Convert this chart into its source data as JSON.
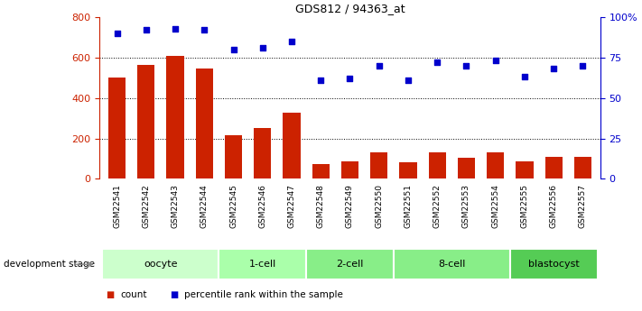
{
  "title": "GDS812 / 94363_at",
  "samples": [
    "GSM22541",
    "GSM22542",
    "GSM22543",
    "GSM22544",
    "GSM22545",
    "GSM22546",
    "GSM22547",
    "GSM22548",
    "GSM22549",
    "GSM22550",
    "GSM22551",
    "GSM22552",
    "GSM22553",
    "GSM22554",
    "GSM22555",
    "GSM22556",
    "GSM22557"
  ],
  "counts": [
    500,
    565,
    610,
    545,
    215,
    250,
    325,
    75,
    85,
    130,
    80,
    130,
    105,
    130,
    85,
    110,
    110
  ],
  "percentiles": [
    90,
    92,
    93,
    92,
    80,
    81,
    85,
    61,
    62,
    70,
    61,
    72,
    70,
    73,
    63,
    68,
    70
  ],
  "stages": [
    {
      "label": "oocyte",
      "start": 0,
      "end": 4,
      "color": "#ccffcc"
    },
    {
      "label": "1-cell",
      "start": 4,
      "end": 7,
      "color": "#aaffaa"
    },
    {
      "label": "2-cell",
      "start": 7,
      "end": 10,
      "color": "#88ee88"
    },
    {
      "label": "8-cell",
      "start": 10,
      "end": 14,
      "color": "#88ee88"
    },
    {
      "label": "blastocyst",
      "start": 14,
      "end": 17,
      "color": "#55cc55"
    }
  ],
  "bar_color": "#cc2200",
  "dot_color": "#0000cc",
  "ylim_left": [
    0,
    800
  ],
  "ylim_right": [
    0,
    100
  ],
  "yticks_left": [
    0,
    200,
    400,
    600,
    800
  ],
  "yticks_right": [
    0,
    25,
    50,
    75,
    100
  ],
  "ylabel_left_color": "#cc2200",
  "ylabel_right_color": "#0000cc",
  "grid_values": [
    200,
    400,
    600
  ],
  "legend_count_label": "count",
  "legend_pct_label": "percentile rank within the sample",
  "dev_stage_label": "development stage",
  "xticklabel_bg": "#cccccc",
  "stage_border_color": "#ffffff"
}
